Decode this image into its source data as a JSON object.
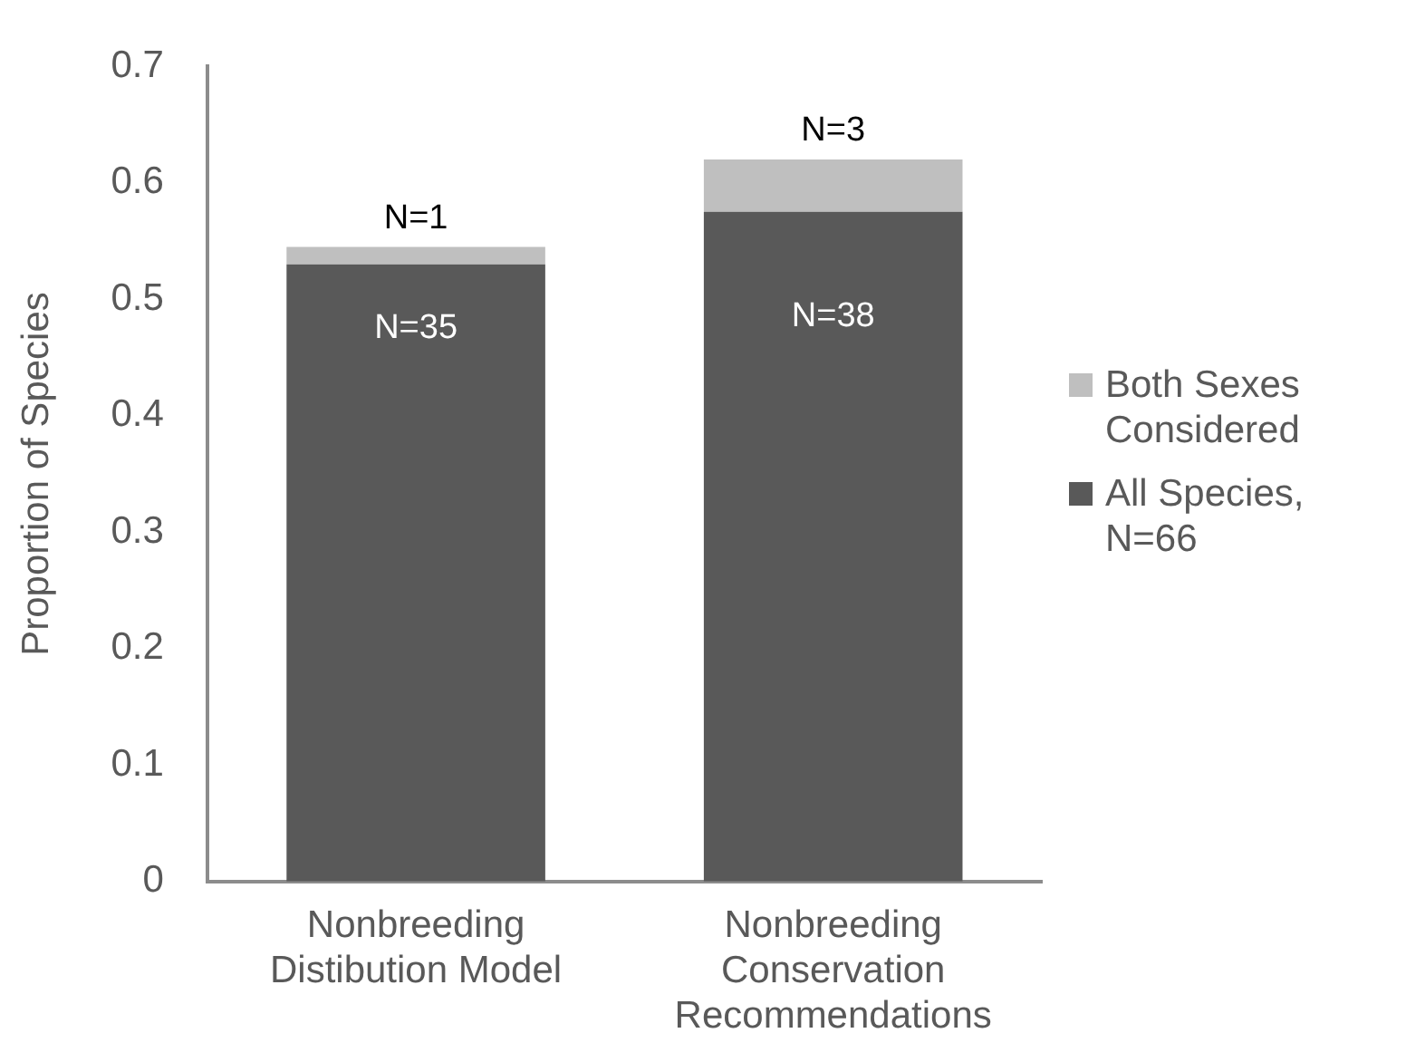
{
  "chart_data": {
    "type": "bar",
    "stacked": true,
    "categories": [
      "Nonbreeding Distibution Model",
      "Nonbreeding Conservation Recommendations"
    ],
    "series": [
      {
        "name": "All Species, N=66",
        "color": "#595959",
        "values": [
          0.53,
          0.575
        ]
      },
      {
        "name": "Both Sexes Considered",
        "color": "#bfbfbf",
        "values": [
          0.015,
          0.045
        ]
      }
    ],
    "annotations": [
      {
        "text": "N=35",
        "x": "Nonbreeding Distibution Model",
        "y": 0.53
      },
      {
        "text": "N=38",
        "x": "Nonbreeding Conservation Recommendations",
        "y": 0.575
      },
      {
        "text": "N=1",
        "x": "Nonbreeding Distibution Model",
        "y": 0.545
      },
      {
        "text": "N=3",
        "x": "Nonbreeding Conservation Recommendations",
        "y": 0.62
      }
    ],
    "ylabel": "Proportion of Species",
    "ylim": [
      0,
      0.7
    ],
    "yticks": [
      0,
      0.1,
      0.2,
      0.3,
      0.4,
      0.5,
      0.6,
      0.7
    ],
    "grid": false,
    "legend": "right"
  }
}
